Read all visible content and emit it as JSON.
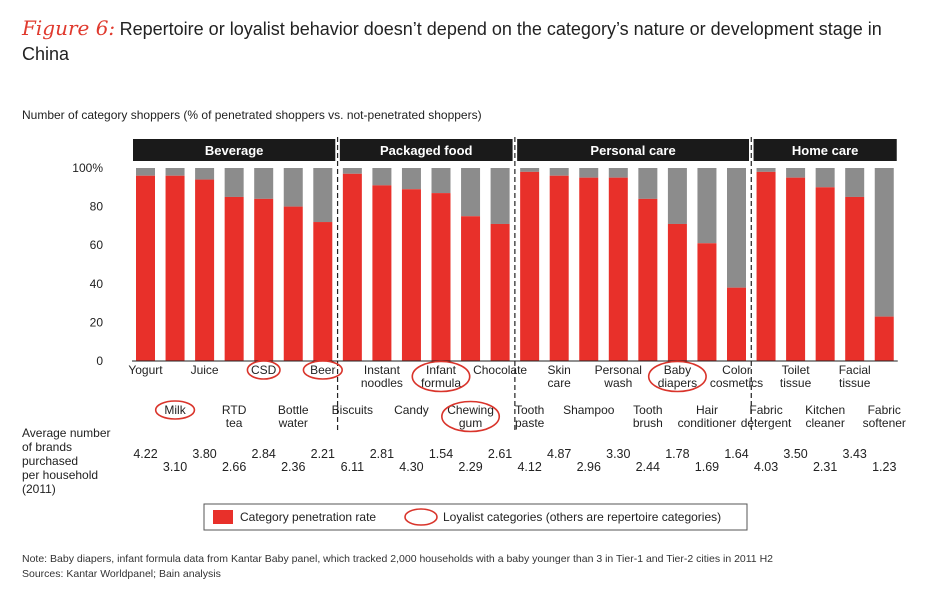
{
  "figure_label": "Figure 6:",
  "title": "Repertoire or loyalist behavior doesn’t depend on the category’s nature or development stage in China",
  "subtitle": "Number of category shoppers (% of penetrated shoppers vs. not-penetrated shoppers)",
  "avg_brands_label": [
    "Average number",
    "of brands",
    "purchased",
    "per household",
    "(2011)"
  ],
  "legend": {
    "penetration": "Category penetration rate",
    "loyalist": "Loyalist categories (others are repertoire categories)"
  },
  "note": "Note: Baby diapers, infant formula data from Kantar Baby panel, which tracked 2,000 households with a baby younger than 3 in Tier-1 and Tier-2 cities in 2011 H2",
  "sources": "Sources: Kantar Worldpanel; Bain analysis",
  "colors": {
    "penetration": "#e8302a",
    "remainder": "#8c8c8c",
    "header": "#1a1a1a",
    "loyalist_circle": "#d9342b"
  },
  "chart_data": {
    "type": "bar",
    "stacked": true,
    "ylim": [
      0,
      100
    ],
    "yticks": [
      "0",
      "20",
      "40",
      "60",
      "80",
      "100%"
    ],
    "groups": [
      {
        "name": "Beverage",
        "start": 0,
        "end": 6
      },
      {
        "name": "Packaged food",
        "start": 7,
        "end": 12
      },
      {
        "name": "Personal care",
        "start": 13,
        "end": 20
      },
      {
        "name": "Home care",
        "start": 21,
        "end": 25
      }
    ],
    "categories": [
      {
        "label": [
          "Yogurt"
        ],
        "row": 0,
        "value": 96,
        "brands": "4.22",
        "loyalist": false
      },
      {
        "label": [
          "Milk"
        ],
        "row": 1,
        "value": 96,
        "brands": "3.10",
        "loyalist": true
      },
      {
        "label": [
          "Juice"
        ],
        "row": 0,
        "value": 94,
        "brands": "3.80",
        "loyalist": false
      },
      {
        "label": [
          "RTD",
          "tea"
        ],
        "row": 1,
        "value": 85,
        "brands": "2.66",
        "loyalist": false
      },
      {
        "label": [
          "CSD"
        ],
        "row": 0,
        "value": 84,
        "brands": "2.84",
        "loyalist": true
      },
      {
        "label": [
          "Bottle",
          "water"
        ],
        "row": 1,
        "value": 80,
        "brands": "2.36",
        "loyalist": false
      },
      {
        "label": [
          "Beer"
        ],
        "row": 0,
        "value": 72,
        "brands": "2.21",
        "loyalist": true
      },
      {
        "label": [
          "Biscuits"
        ],
        "row": 1,
        "value": 97,
        "brands": "6.11",
        "loyalist": false
      },
      {
        "label": [
          "Instant",
          "noodles"
        ],
        "row": 0,
        "value": 91,
        "brands": "2.81",
        "loyalist": false
      },
      {
        "label": [
          "Candy"
        ],
        "row": 1,
        "value": 89,
        "brands": "4.30",
        "loyalist": false
      },
      {
        "label": [
          "Infant",
          "formula"
        ],
        "row": 0,
        "value": 87,
        "brands": "1.54",
        "loyalist": true
      },
      {
        "label": [
          "Chewing",
          "gum"
        ],
        "row": 1,
        "value": 75,
        "brands": "2.29",
        "loyalist": true
      },
      {
        "label": [
          "Chocolate"
        ],
        "row": 0,
        "value": 71,
        "brands": "2.61",
        "loyalist": false
      },
      {
        "label": [
          "Tooth",
          "paste"
        ],
        "row": 1,
        "value": 98,
        "brands": "4.12",
        "loyalist": false
      },
      {
        "label": [
          "Skin",
          "care"
        ],
        "row": 0,
        "value": 96,
        "brands": "4.87",
        "loyalist": false
      },
      {
        "label": [
          "Shampoo"
        ],
        "row": 1,
        "value": 95,
        "brands": "2.96",
        "loyalist": false
      },
      {
        "label": [
          "Personal",
          "wash"
        ],
        "row": 0,
        "value": 95,
        "brands": "3.30",
        "loyalist": false
      },
      {
        "label": [
          "Tooth",
          "brush"
        ],
        "row": 1,
        "value": 84,
        "brands": "2.44",
        "loyalist": false
      },
      {
        "label": [
          "Baby",
          "diapers"
        ],
        "row": 0,
        "value": 71,
        "brands": "1.78",
        "loyalist": true
      },
      {
        "label": [
          "Hair",
          "conditioner"
        ],
        "row": 1,
        "value": 61,
        "brands": "1.69",
        "loyalist": false
      },
      {
        "label": [
          "Color",
          "cosmetics"
        ],
        "row": 0,
        "value": 38,
        "brands": "1.64",
        "loyalist": false
      },
      {
        "label": [
          "Fabric",
          "detergent"
        ],
        "row": 1,
        "value": 98,
        "brands": "4.03",
        "loyalist": false
      },
      {
        "label": [
          "Toilet",
          "tissue"
        ],
        "row": 0,
        "value": 95,
        "brands": "3.50",
        "loyalist": false
      },
      {
        "label": [
          "Kitchen",
          "cleaner"
        ],
        "row": 1,
        "value": 90,
        "brands": "2.31",
        "loyalist": false
      },
      {
        "label": [
          "Facial",
          "tissue"
        ],
        "row": 0,
        "value": 85,
        "brands": "3.43",
        "loyalist": false
      },
      {
        "label": [
          "Fabric",
          "softener"
        ],
        "row": 1,
        "value": 23,
        "brands": "1.23",
        "loyalist": false
      }
    ]
  }
}
